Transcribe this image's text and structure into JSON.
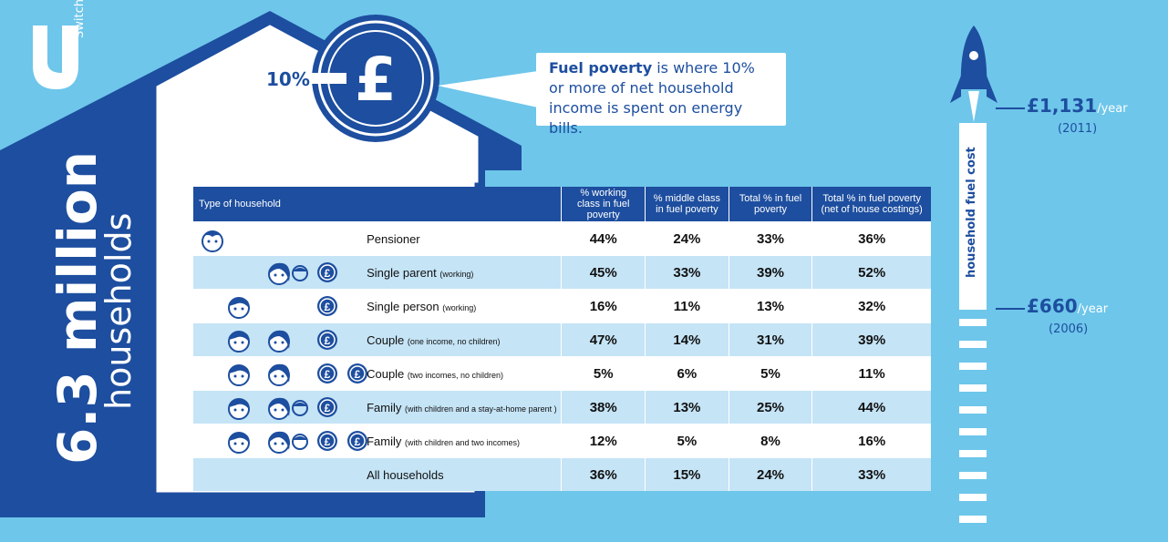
{
  "brand": {
    "logo_letter": "U",
    "logo_text": "Switch"
  },
  "headline": {
    "number": "6.3 million",
    "unit": "households"
  },
  "pound_badge": {
    "prefix": "10% +",
    "symbol": "£"
  },
  "definition": {
    "term": "Fuel poverty",
    "text": " is where 10% or more of net household income is spent on energy bills."
  },
  "table": {
    "headers": [
      "Type of household",
      "% working class in fuel poverty",
      "% middle class in fuel poverty",
      "Total % in fuel poverty",
      "Total % in fuel poverty (net of house costings)"
    ],
    "rows": [
      {
        "name": "Pensioner",
        "note": "",
        "values": [
          "44%",
          "24%",
          "33%",
          "36%"
        ]
      },
      {
        "name": "Single parent",
        "note": "(working)",
        "values": [
          "45%",
          "33%",
          "39%",
          "52%"
        ]
      },
      {
        "name": "Single person",
        "note": "(working)",
        "values": [
          "16%",
          "11%",
          "13%",
          "32%"
        ]
      },
      {
        "name": "Couple",
        "note": "(one income, no children)",
        "values": [
          "47%",
          "14%",
          "31%",
          "39%"
        ]
      },
      {
        "name": "Couple",
        "note": "(two incomes, no children)",
        "values": [
          "5%",
          "6%",
          "5%",
          "11%"
        ]
      },
      {
        "name": "Family",
        "note": "(with children and a stay-at-home parent )",
        "values": [
          "38%",
          "13%",
          "25%",
          "44%"
        ]
      },
      {
        "name": "Family",
        "note": "(with children and two incomes)",
        "values": [
          "12%",
          "5%",
          "8%",
          "16%"
        ]
      },
      {
        "name": "All households",
        "note": "",
        "values": [
          "36%",
          "15%",
          "24%",
          "33%"
        ]
      }
    ]
  },
  "fuel_cost": {
    "label": "household fuel cost",
    "high": {
      "value": "£1,131",
      "unit": "/year",
      "year": "(2011)"
    },
    "low": {
      "value": "£660",
      "unit": "/year",
      "year": "(2006)"
    }
  },
  "colors": {
    "background": "#6ec6ea",
    "brand_blue": "#1d4e9f",
    "row_alt": "#c5e4f6"
  }
}
